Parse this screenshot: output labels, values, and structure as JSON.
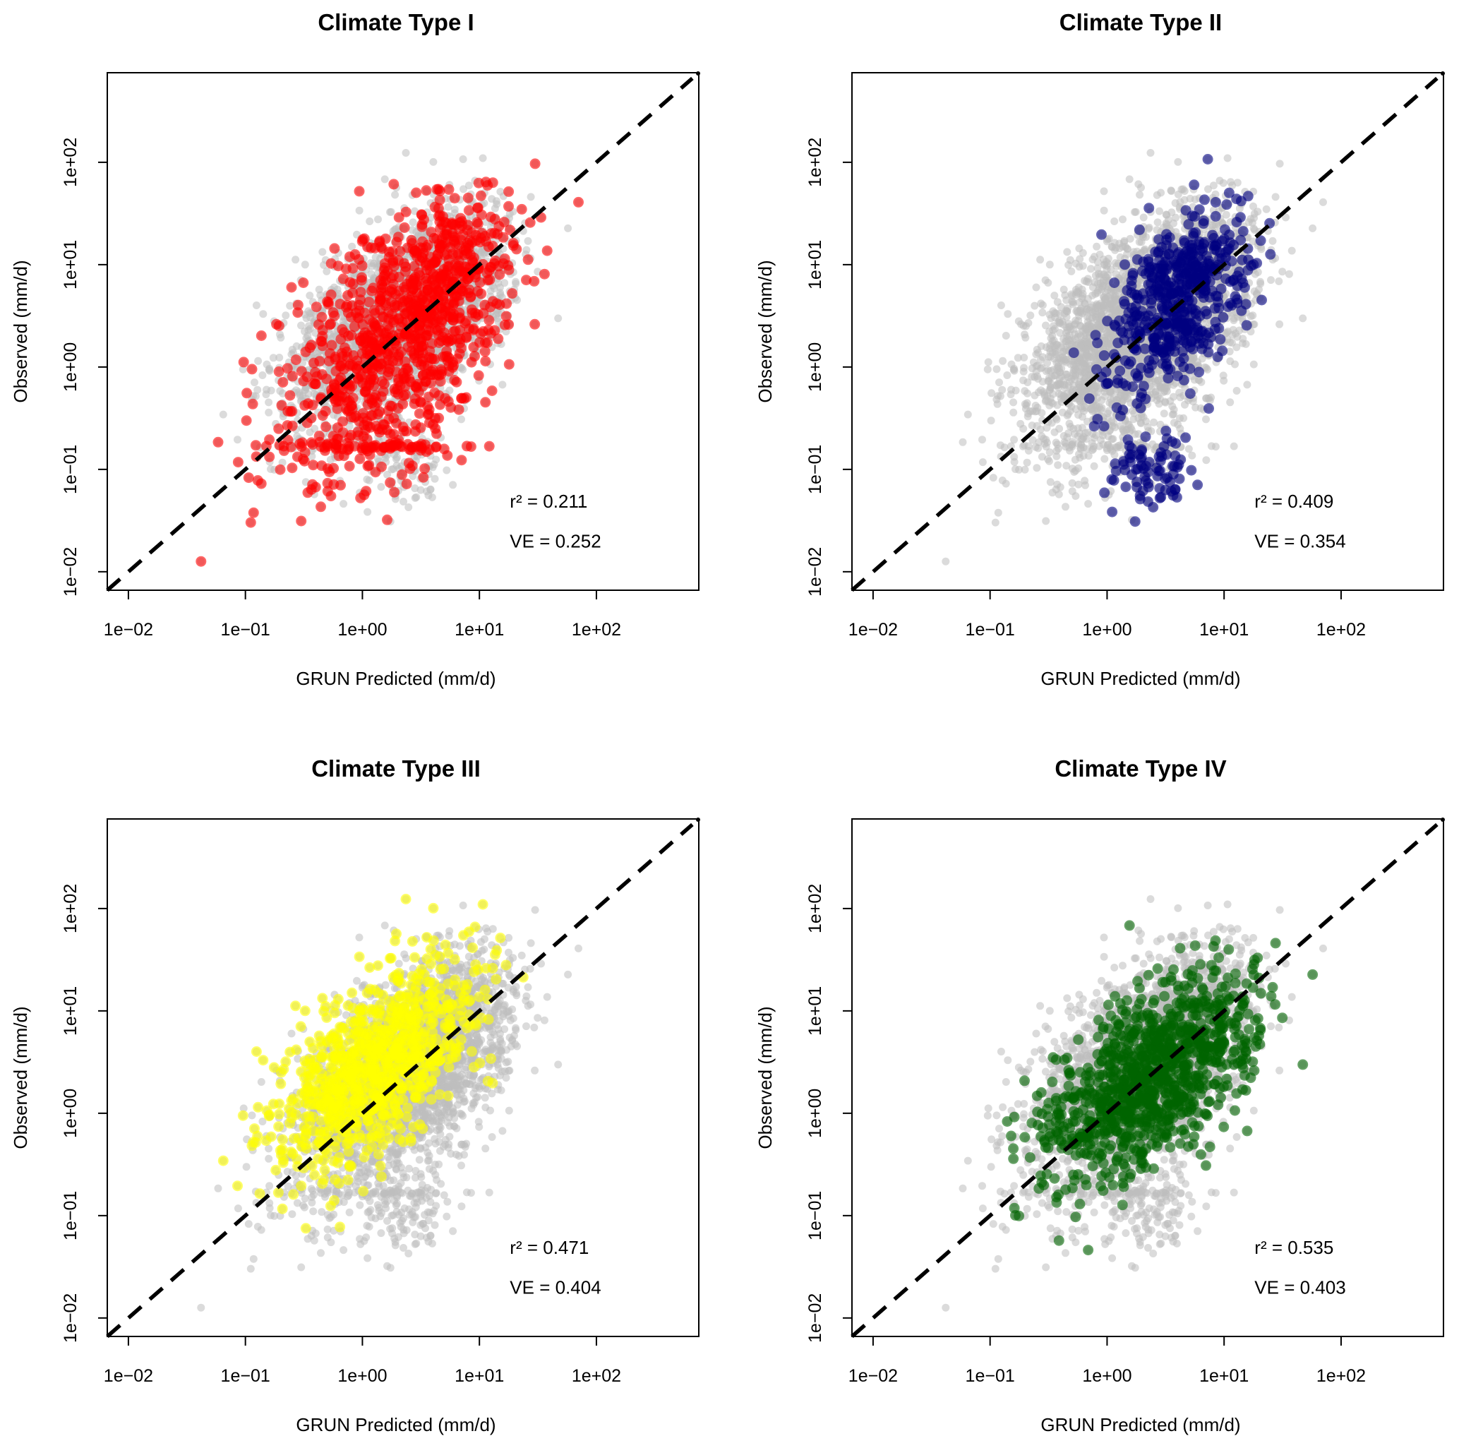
{
  "chart_data": [
    {
      "type": "scatter",
      "title": "Climate Type I",
      "xlabel": "GRUN Predicted (mm/d)",
      "ylabel": "Observed (mm/d)",
      "xscale": "log10",
      "yscale": "log10",
      "xlim": [
        0.0066,
        750
      ],
      "ylim": [
        0.0066,
        750
      ],
      "xticks": [
        "1e−02",
        "1e−01",
        "1e+00",
        "1e+01",
        "1e+02"
      ],
      "yticks": [
        "1e−02",
        "1e−01",
        "1e+00",
        "1e+01",
        "1e+02"
      ],
      "highlight_color": "#FF0000",
      "background_color": "#BEBEBE",
      "reference_line": "1:1",
      "r2_label": "r² = 0.211",
      "ve_label": "VE = 0.252",
      "r2": 0.211,
      "ve": 0.252,
      "clusters_log10": [
        {
          "mx": 0.25,
          "my": 0.2,
          "sx": 0.5,
          "sy": 0.65,
          "rho": 0.5,
          "n": 800
        },
        {
          "mx": 0.7,
          "my": 0.9,
          "sx": 0.25,
          "sy": 0.4,
          "rho": 0.5,
          "n": 250
        },
        {
          "mx": 0.2,
          "my": -0.78,
          "sx": 0.35,
          "sy": 0.02,
          "rho": 0,
          "n": 60
        }
      ]
    },
    {
      "type": "scatter",
      "title": "Climate Type II",
      "xlabel": "GRUN Predicted (mm/d)",
      "ylabel": "Observed (mm/d)",
      "xscale": "log10",
      "yscale": "log10",
      "xlim": [
        0.0066,
        750
      ],
      "ylim": [
        0.0066,
        750
      ],
      "xticks": [
        "1e−02",
        "1e−01",
        "1e+00",
        "1e+01",
        "1e+02"
      ],
      "yticks": [
        "1e−02",
        "1e−01",
        "1e+00",
        "1e+01",
        "1e+02"
      ],
      "highlight_color": "#000080",
      "background_color": "#BEBEBE",
      "reference_line": "1:1",
      "r2_label": "r² = 0.409",
      "ve_label": "VE = 0.354",
      "r2": 0.409,
      "ve": 0.354,
      "clusters_log10": [
        {
          "mx": 0.6,
          "my": 0.65,
          "sx": 0.28,
          "sy": 0.42,
          "rho": 0.45,
          "n": 550
        },
        {
          "mx": 0.38,
          "my": -1.0,
          "sx": 0.18,
          "sy": 0.18,
          "rho": 0,
          "n": 80
        }
      ]
    },
    {
      "type": "scatter",
      "title": "Climate Type III",
      "xlabel": "GRUN Predicted (mm/d)",
      "ylabel": "Observed (mm/d)",
      "xscale": "log10",
      "yscale": "log10",
      "xlim": [
        0.0066,
        750
      ],
      "ylim": [
        0.0066,
        750
      ],
      "xticks": [
        "1e−02",
        "1e−01",
        "1e+00",
        "1e+01",
        "1e+02"
      ],
      "yticks": [
        "1e−02",
        "1e−01",
        "1e+00",
        "1e+01",
        "1e+02"
      ],
      "highlight_color": "#FFFF00",
      "background_color": "#BEBEBE",
      "reference_line": "1:1",
      "r2_label": "r² = 0.471",
      "ve_label": "VE = 0.404",
      "r2": 0.471,
      "ve": 0.404,
      "clusters_log10": [
        {
          "mx": 0.1,
          "my": 0.45,
          "sx": 0.42,
          "sy": 0.5,
          "rho": 0.6,
          "n": 900
        }
      ]
    },
    {
      "type": "scatter",
      "title": "Climate Type IV",
      "xlabel": "GRUN Predicted (mm/d)",
      "ylabel": "Observed (mm/d)",
      "xscale": "log10",
      "yscale": "log10",
      "xlim": [
        0.0066,
        750
      ],
      "ylim": [
        0.0066,
        750
      ],
      "xticks": [
        "1e−02",
        "1e−01",
        "1e+00",
        "1e+01",
        "1e+02"
      ],
      "yticks": [
        "1e−02",
        "1e−01",
        "1e+00",
        "1e+01",
        "1e+02"
      ],
      "highlight_color": "#006400",
      "background_color": "#BEBEBE",
      "reference_line": "1:1",
      "r2_label": "r² = 0.535",
      "ve_label": "VE = 0.403",
      "r2": 0.535,
      "ve": 0.403,
      "clusters_log10": [
        {
          "mx": 0.4,
          "my": 0.35,
          "sx": 0.45,
          "sy": 0.5,
          "rho": 0.6,
          "n": 1100
        }
      ]
    }
  ]
}
